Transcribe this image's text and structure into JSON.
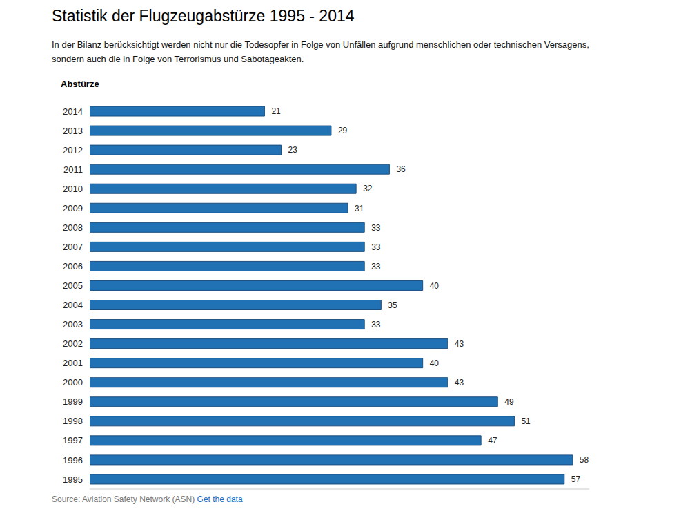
{
  "chart_data": {
    "type": "bar",
    "title": "Statistik der Flugzeugabstürze 1995 - 2014",
    "subtitle": "In der Bilanz berücksichtigt werden nicht nur die Todesopfer in Folge von Unfällen aufgrund menschlichen oder technischen Versagens, sondern auch die in Folge von Terrorismus und Sabotageakten.",
    "y_label": "Abstürze",
    "source": "Source: Aviation Safety Network (ASN)",
    "link_text": "Get the data",
    "categories": [
      "2014",
      "2013",
      "2012",
      "2011",
      "2010",
      "2009",
      "2008",
      "2007",
      "2006",
      "2005",
      "2004",
      "2003",
      "2002",
      "2001",
      "2000",
      "1999",
      "1998",
      "1997",
      "1996",
      "1995"
    ],
    "values": [
      21,
      29,
      23,
      36,
      32,
      31,
      33,
      33,
      33,
      40,
      35,
      33,
      43,
      40,
      43,
      49,
      51,
      47,
      58,
      57
    ],
    "color": "#2171b5",
    "orientation": "horizontal",
    "xlim": [
      0,
      60
    ],
    "xticks": [],
    "tick_labels": "y",
    "data_labels": true,
    "grid": false
  }
}
